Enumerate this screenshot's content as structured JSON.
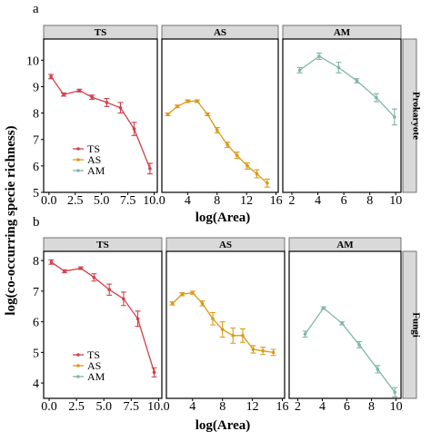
{
  "figure": {
    "ylabel": "log(co-occurring specie richness)",
    "xlabel": "log(Area)"
  },
  "colors": {
    "TS": "#d2404a",
    "AS": "#d99a18",
    "AM": "#7fb7a2",
    "strip": "#d9d9d9"
  },
  "chart_data": [
    {
      "type": "line",
      "panel_letter": "a",
      "row_label": "Prokaryote",
      "ylim": [
        5,
        10.8
      ],
      "yticks": [
        5,
        6,
        7,
        8,
        9,
        10
      ],
      "ytick_labels": [
        "5",
        "6",
        "7",
        "8",
        "9",
        "10"
      ],
      "xlabel": "log(Area)",
      "ylabel": "log(co-occurring specie richness)",
      "legend": {
        "position": "bottom-left of first facet",
        "entries": [
          "TS",
          "AS",
          "AM"
        ]
      },
      "facets": [
        {
          "name": "TS",
          "color": "#d2404a",
          "xlim": [
            -0.5,
            10.3
          ],
          "xticks": [
            0,
            2.5,
            5,
            7.5,
            10
          ],
          "xtick_labels": [
            "0.0",
            "2.5",
            "5.0",
            "7.5",
            "10.0"
          ],
          "x": [
            0.2,
            1.4,
            2.9,
            4.1,
            5.5,
            6.8,
            8.1,
            9.6
          ],
          "y": [
            9.38,
            8.7,
            8.85,
            8.6,
            8.4,
            8.2,
            7.4,
            5.9
          ],
          "err": [
            0.08,
            0.06,
            0.05,
            0.08,
            0.15,
            0.2,
            0.25,
            0.2
          ]
        },
        {
          "name": "AS",
          "color": "#d99a18",
          "xlim": [
            0.5,
            16.3
          ],
          "xticks": [
            4,
            8,
            12,
            16
          ],
          "xtick_labels": [
            "4",
            "8",
            "12",
            "16"
          ],
          "x": [
            1.3,
            2.6,
            4.0,
            5.3,
            6.7,
            8.0,
            9.4,
            10.7,
            12.1,
            13.4,
            14.8
          ],
          "y": [
            7.95,
            8.25,
            8.45,
            8.45,
            7.95,
            7.35,
            6.8,
            6.4,
            6.0,
            5.7,
            5.35
          ],
          "err": [
            0.05,
            0.05,
            0.05,
            0.05,
            0.05,
            0.1,
            0.1,
            0.12,
            0.12,
            0.15,
            0.15
          ]
        },
        {
          "name": "AM",
          "color": "#7fb7a2",
          "xlim": [
            1.3,
            10.4
          ],
          "xticks": [
            2,
            4,
            6,
            8,
            10
          ],
          "xtick_labels": [
            "2",
            "4",
            "6",
            "8",
            "10"
          ],
          "x": [
            2.6,
            4.1,
            5.6,
            7.0,
            8.5,
            9.9
          ],
          "y": [
            9.62,
            10.15,
            9.72,
            9.22,
            8.58,
            7.85
          ],
          "err": [
            0.1,
            0.12,
            0.2,
            0.08,
            0.15,
            0.3
          ]
        }
      ]
    },
    {
      "type": "line",
      "panel_letter": "b",
      "row_label": "Fungi",
      "ylim": [
        3.5,
        8.3
      ],
      "yticks": [
        4,
        5,
        6,
        7,
        8
      ],
      "ytick_labels": [
        "4",
        "5",
        "6",
        "7",
        "8"
      ],
      "xlabel": "log(Area)",
      "ylabel": "log(co-occurring specie richness)",
      "legend": {
        "position": "bottom-left of first facet",
        "entries": [
          "TS",
          "AS",
          "AM"
        ]
      },
      "facets": [
        {
          "name": "TS",
          "color": "#d2404a",
          "xlim": [
            -0.5,
            10.3
          ],
          "xticks": [
            0,
            2.5,
            5,
            7.5,
            10
          ],
          "xtick_labels": [
            "0.0",
            "2.5",
            "5.0",
            "7.5",
            "10.0"
          ],
          "x": [
            0.2,
            1.4,
            2.9,
            4.1,
            5.5,
            6.8,
            8.1,
            9.6
          ],
          "y": [
            7.95,
            7.65,
            7.75,
            7.45,
            7.05,
            6.75,
            6.1,
            4.35
          ],
          "err": [
            0.07,
            0.05,
            0.04,
            0.12,
            0.18,
            0.22,
            0.25,
            0.15
          ]
        },
        {
          "name": "AS",
          "color": "#d99a18",
          "xlim": [
            0.5,
            16.3
          ],
          "xticks": [
            4,
            8,
            12,
            16
          ],
          "xtick_labels": [
            "4",
            "8",
            "12",
            "16"
          ],
          "x": [
            1.3,
            2.6,
            4.0,
            5.3,
            6.7,
            8.0,
            9.4,
            10.7,
            12.1,
            13.4,
            14.8
          ],
          "y": [
            6.6,
            6.9,
            6.95,
            6.6,
            6.1,
            5.75,
            5.55,
            5.55,
            5.1,
            5.05,
            5.0
          ],
          "err": [
            0.05,
            0.05,
            0.05,
            0.08,
            0.2,
            0.25,
            0.25,
            0.22,
            0.12,
            0.12,
            0.1
          ]
        },
        {
          "name": "AM",
          "color": "#7fb7a2",
          "xlim": [
            1.3,
            10.4
          ],
          "xticks": [
            2,
            4,
            6,
            8,
            10
          ],
          "xtick_labels": [
            "2",
            "4",
            "6",
            "8",
            "10"
          ],
          "x": [
            2.6,
            4.1,
            5.6,
            7.0,
            8.5,
            9.9
          ],
          "y": [
            5.6,
            6.45,
            5.95,
            5.25,
            4.45,
            3.7
          ],
          "err": [
            0.1,
            0.04,
            0.05,
            0.1,
            0.12,
            0.15
          ]
        }
      ]
    }
  ]
}
